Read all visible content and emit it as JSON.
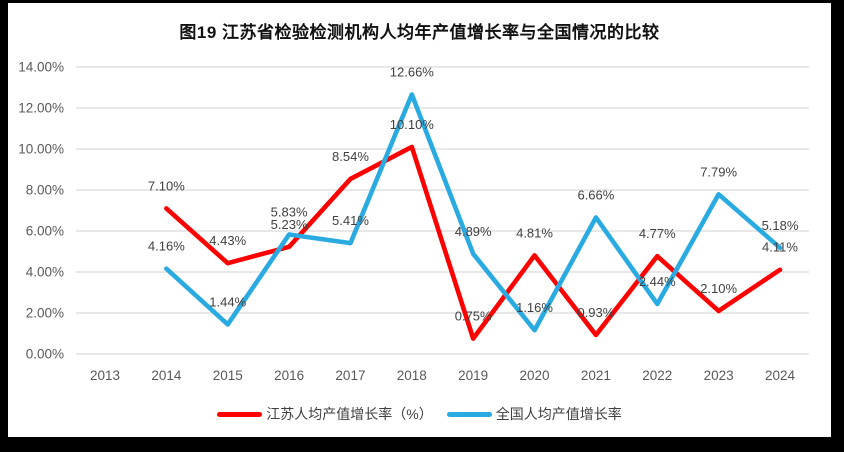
{
  "title": "图19 江苏省检验检测机构人均年产值增长率与全国情况的比较",
  "colors": {
    "jiangsu_line": "#FF0000",
    "national_line": "#29ABE2",
    "gridline": "#D9D9D9",
    "axis_text": "#595959",
    "data_label_text": "#404040",
    "frame": "#000000",
    "background": "#FFFFFF"
  },
  "chart_data": {
    "type": "line",
    "title": "图19 江苏省检验检测机构人均年产值增长率与全国情况的比较",
    "categories": [
      "2013",
      "2014",
      "2015",
      "2016",
      "2017",
      "2018",
      "2019",
      "2020",
      "2021",
      "2022",
      "2023",
      "2024"
    ],
    "series": [
      {
        "name": "江苏人均产值增长率（%）",
        "color": "#FF0000",
        "values": [
          null,
          7.1,
          4.43,
          5.23,
          8.54,
          10.1,
          0.75,
          4.81,
          0.93,
          4.77,
          2.1,
          4.11
        ],
        "labels": [
          "",
          "7.10%",
          "4.43%",
          "5.23%",
          "8.54%",
          "10.10%",
          "0.75%",
          "4.81%",
          "0.93%",
          "4.77%",
          "2.10%",
          "4.11%"
        ]
      },
      {
        "name": "全国人均产值增长率",
        "color": "#29ABE2",
        "values": [
          null,
          4.16,
          1.44,
          5.83,
          5.41,
          12.66,
          4.89,
          1.16,
          6.66,
          2.44,
          7.79,
          5.18
        ],
        "labels": [
          "",
          "4.16%",
          "1.44%",
          "5.83%",
          "5.41%",
          "12.66%",
          "4.89%",
          "1.16%",
          "6.66%",
          "2.44%",
          "7.79%",
          "5.18%"
        ]
      }
    ],
    "ylim": [
      0,
      14
    ],
    "y_step": 2,
    "y_tick_labels": [
      "0.00%",
      "2.00%",
      "4.00%",
      "6.00%",
      "8.00%",
      "10.00%",
      "12.00%",
      "14.00%"
    ],
    "grid": true,
    "legend_position": "bottom"
  }
}
